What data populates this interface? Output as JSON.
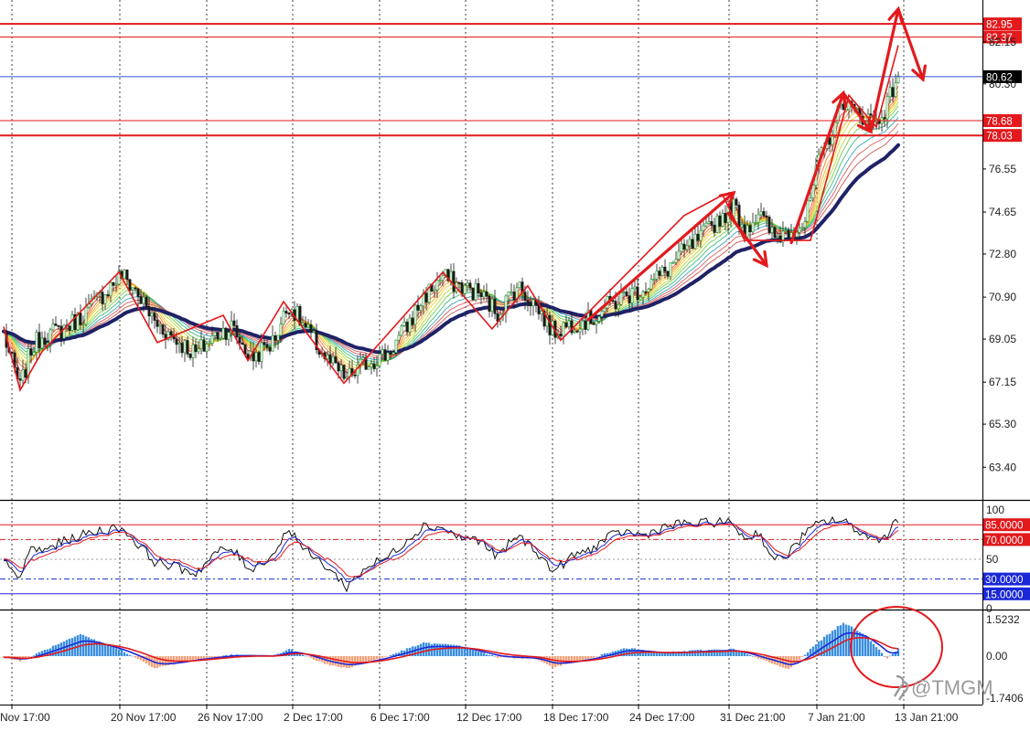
{
  "chart_data": [
    {
      "type": "candlestick",
      "panel": "main",
      "instrument": "",
      "ylim": [
        62.0,
        84.0
      ],
      "y_ticks": [
        "63.40",
        "65.30",
        "67.15",
        "69.05",
        "70.90",
        "72.80",
        "74.65",
        "76.55",
        "80.30",
        "82.15"
      ],
      "x_ticks": [
        "Nov 17:00",
        "20 Nov 17:00",
        "26 Nov 17:00",
        "2 Dec 17:00",
        "6 Dec 17:00",
        "12 Dec 17:00",
        "18 Dec 17:00",
        "24 Dec 17:00",
        "31 Dec 21:00",
        "7 Jan 21:00",
        "13 Jan 21:00"
      ],
      "price_path": [
        [
          0,
          69.3
        ],
        [
          3,
          68.0
        ],
        [
          6,
          66.9
        ],
        [
          10,
          68.6
        ],
        [
          14,
          69.2
        ],
        [
          20,
          69.4
        ],
        [
          28,
          70.0
        ],
        [
          35,
          70.9
        ],
        [
          43,
          71.9
        ],
        [
          48,
          71.2
        ],
        [
          55,
          69.8
        ],
        [
          63,
          69.0
        ],
        [
          70,
          68.4
        ],
        [
          78,
          69.3
        ],
        [
          83,
          69.6
        ],
        [
          90,
          68.2
        ],
        [
          98,
          68.9
        ],
        [
          104,
          70.6
        ],
        [
          110,
          69.5
        ],
        [
          118,
          68.1
        ],
        [
          125,
          67.3
        ],
        [
          132,
          68.0
        ],
        [
          140,
          68.4
        ],
        [
          147,
          69.6
        ],
        [
          153,
          70.9
        ],
        [
          160,
          71.8
        ],
        [
          166,
          71.4
        ],
        [
          173,
          71.1
        ],
        [
          180,
          70.2
        ],
        [
          187,
          71.4
        ],
        [
          193,
          70.7
        ],
        [
          200,
          69.4
        ],
        [
          208,
          69.8
        ],
        [
          214,
          69.9
        ],
        [
          220,
          70.5
        ],
        [
          226,
          70.9
        ],
        [
          233,
          71.3
        ],
        [
          240,
          71.9
        ],
        [
          247,
          72.8
        ],
        [
          254,
          73.5
        ],
        [
          260,
          74.3
        ],
        [
          266,
          74.9
        ],
        [
          270,
          73.9
        ],
        [
          275,
          74.6
        ],
        [
          281,
          73.5
        ],
        [
          286,
          73.9
        ],
        [
          292,
          74.2
        ],
        [
          297,
          76.8
        ],
        [
          302,
          78.3
        ],
        [
          306,
          79.6
        ],
        [
          310,
          79.0
        ],
        [
          314,
          78.9
        ],
        [
          318,
          78.6
        ],
        [
          322,
          79.4
        ],
        [
          326,
          80.8
        ]
      ],
      "trend_zigzag": [
        [
          0,
          69.6
        ],
        [
          6,
          66.8
        ],
        [
          14,
          68.5
        ],
        [
          42,
          72.0
        ],
        [
          56,
          68.9
        ],
        [
          80,
          70.1
        ],
        [
          89,
          68.1
        ],
        [
          102,
          70.7
        ],
        [
          124,
          67.1
        ],
        [
          160,
          72.0
        ],
        [
          178,
          69.5
        ],
        [
          191,
          71.4
        ],
        [
          203,
          69.0
        ],
        [
          248,
          74.5
        ],
        [
          262,
          75.4
        ],
        [
          270,
          73.4
        ],
        [
          294,
          73.4
        ],
        [
          308,
          79.8
        ],
        [
          318,
          78.4
        ],
        [
          326,
          82.0
        ]
      ],
      "arrows": [
        [
          [
            213,
            69.9
          ],
          [
            266,
            75.5
          ]
        ],
        [
          [
            264,
            74.6
          ],
          [
            278,
            72.3
          ]
        ],
        [
          [
            287,
            73.3
          ],
          [
            306,
            79.9
          ]
        ],
        [
          [
            306,
            79.9
          ],
          [
            316,
            78.2
          ]
        ],
        [
          [
            316,
            78.2
          ],
          [
            326,
            83.6
          ]
        ],
        [
          [
            326,
            83.6
          ],
          [
            335,
            80.5
          ]
        ]
      ],
      "horizontal_levels": [
        {
          "value": 82.95,
          "label": "82.95",
          "color": "#e3191c"
        },
        {
          "value": 82.37,
          "label": "82.37",
          "color": "#e3191c"
        },
        {
          "value": 80.62,
          "label": "80.62",
          "color": "#3050d0"
        },
        {
          "value": 78.68,
          "label": "78.68",
          "color": "#e3191c"
        },
        {
          "value": 78.03,
          "label": "78.03",
          "color": "#e3191c"
        }
      ],
      "colors": {
        "bull": "#2e9c35",
        "bear": "#cc1f1f",
        "slow_ma": "#1f2266",
        "levels": "#e3191c",
        "current": "#3050d0"
      }
    },
    {
      "type": "line",
      "panel": "oscillator",
      "ylim": [
        0,
        100
      ],
      "y_ticks": [
        "100",
        "50",
        "0"
      ],
      "levels": [
        {
          "value": 85,
          "label": "85.0000",
          "color": "#e3191c"
        },
        {
          "value": 70,
          "label": "70.0000",
          "color": "#e3191c"
        },
        {
          "value": 30,
          "label": "30.0000",
          "color": "#1a28d8"
        },
        {
          "value": 15,
          "label": "15.0000",
          "color": "#1a28d8"
        }
      ],
      "series_path": [
        [
          0,
          48
        ],
        [
          3,
          36
        ],
        [
          6,
          32
        ],
        [
          10,
          62
        ],
        [
          14,
          58
        ],
        [
          20,
          66
        ],
        [
          28,
          74
        ],
        [
          35,
          79
        ],
        [
          43,
          82
        ],
        [
          48,
          68
        ],
        [
          55,
          48
        ],
        [
          63,
          42
        ],
        [
          70,
          36
        ],
        [
          78,
          58
        ],
        [
          83,
          60
        ],
        [
          90,
          40
        ],
        [
          98,
          54
        ],
        [
          104,
          82
        ],
        [
          110,
          58
        ],
        [
          118,
          42
        ],
        [
          125,
          22
        ],
        [
          132,
          42
        ],
        [
          140,
          52
        ],
        [
          147,
          70
        ],
        [
          153,
          84
        ],
        [
          160,
          82
        ],
        [
          166,
          72
        ],
        [
          173,
          70
        ],
        [
          180,
          52
        ],
        [
          187,
          74
        ],
        [
          193,
          62
        ],
        [
          200,
          38
        ],
        [
          208,
          54
        ],
        [
          214,
          60
        ],
        [
          220,
          72
        ],
        [
          226,
          78
        ],
        [
          233,
          74
        ],
        [
          240,
          82
        ],
        [
          247,
          86
        ],
        [
          254,
          86
        ],
        [
          260,
          88
        ],
        [
          266,
          86
        ],
        [
          270,
          70
        ],
        [
          275,
          78
        ],
        [
          281,
          48
        ],
        [
          286,
          56
        ],
        [
          292,
          76
        ],
        [
          297,
          86
        ],
        [
          302,
          90
        ],
        [
          306,
          88
        ],
        [
          310,
          82
        ],
        [
          314,
          74
        ],
        [
          318,
          70
        ],
        [
          322,
          76
        ],
        [
          326,
          92
        ]
      ]
    },
    {
      "type": "bar",
      "panel": "macd",
      "ylim": [
        -1.7406,
        1.75
      ],
      "y_ticks": [
        "1.5232",
        "0.00",
        "-1.7406"
      ],
      "series_path": [
        [
          0,
          -0.05
        ],
        [
          6,
          -0.2
        ],
        [
          14,
          0.2
        ],
        [
          28,
          0.9
        ],
        [
          43,
          0.25
        ],
        [
          55,
          -0.5
        ],
        [
          70,
          -0.15
        ],
        [
          83,
          0.05
        ],
        [
          98,
          0.0
        ],
        [
          104,
          0.3
        ],
        [
          118,
          -0.35
        ],
        [
          125,
          -0.5
        ],
        [
          140,
          0.0
        ],
        [
          153,
          0.55
        ],
        [
          166,
          0.45
        ],
        [
          180,
          -0.05
        ],
        [
          193,
          -0.1
        ],
        [
          200,
          -0.45
        ],
        [
          214,
          -0.1
        ],
        [
          226,
          0.35
        ],
        [
          240,
          0.15
        ],
        [
          254,
          0.25
        ],
        [
          266,
          0.3
        ],
        [
          275,
          -0.1
        ],
        [
          286,
          -0.55
        ],
        [
          297,
          0.6
        ],
        [
          306,
          1.4
        ],
        [
          314,
          0.9
        ],
        [
          322,
          -0.1
        ],
        [
          326,
          0.3
        ]
      ],
      "colors": {
        "positive": "#3b8fe0",
        "negative": "#f2a27a",
        "signal_fast": "#1a28d8",
        "signal_slow": "#e3191c"
      }
    }
  ],
  "watermark": {
    "text": "@TMGM",
    "icon": "tmgm-logo-icon"
  }
}
